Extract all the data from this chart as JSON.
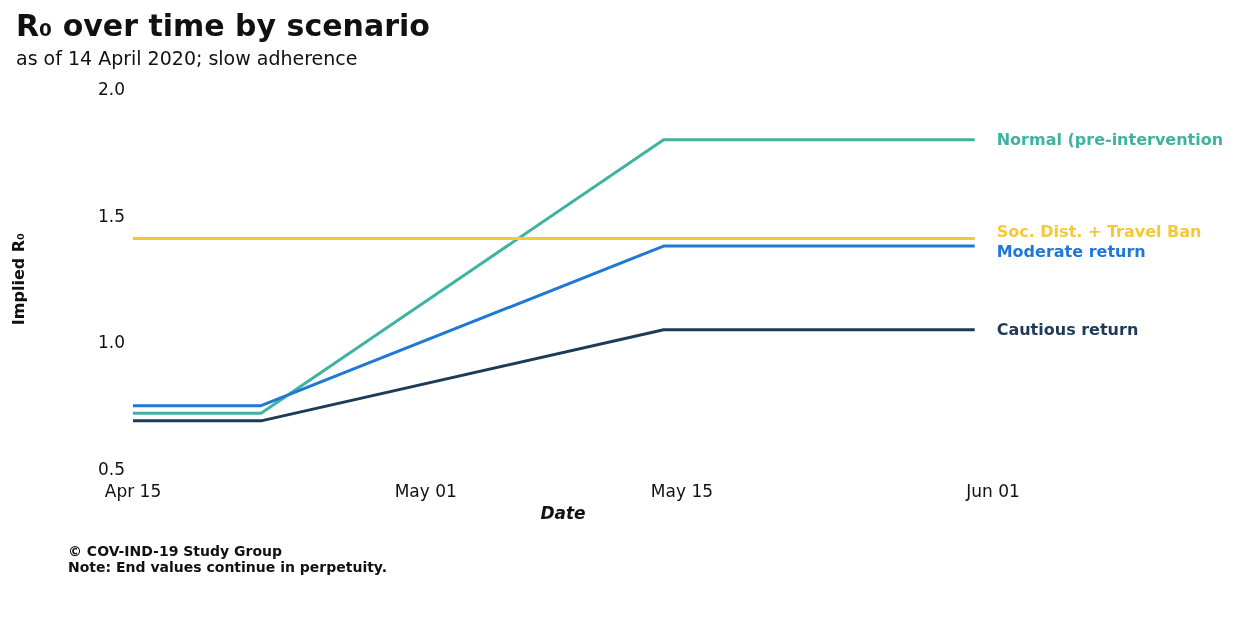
{
  "chart_data": {
    "type": "line",
    "title": "R₀ over time by scenario",
    "subtitle": "as of 14 April 2020; slow adherence",
    "xlabel": "Date",
    "ylabel": "Implied R₀",
    "series": [
      {
        "name": "Normal (pre-intervention",
        "color": "#3fb3a1",
        "x": [
          "2020-04-15",
          "2020-04-22",
          "2020-05-14",
          "2020-05-31"
        ],
        "values": [
          0.72,
          0.72,
          1.8,
          1.8
        ]
      },
      {
        "name": "Soc. Dist. + Travel Ban",
        "color": "#f6c838",
        "x": [
          "2020-04-15",
          "2020-05-31"
        ],
        "values": [
          1.41,
          1.41
        ]
      },
      {
        "name": "Moderate return",
        "color": "#1f78d8",
        "x": [
          "2020-04-15",
          "2020-04-22",
          "2020-05-14",
          "2020-05-31"
        ],
        "values": [
          0.75,
          0.75,
          1.38,
          1.38
        ]
      },
      {
        "name": "Cautious return",
        "color": "#1d3b57",
        "x": [
          "2020-04-15",
          "2020-04-22",
          "2020-05-14",
          "2020-05-31"
        ],
        "values": [
          0.69,
          0.69,
          1.05,
          1.05
        ]
      }
    ],
    "xlim": [
      "2020-04-15",
      "2020-06-01"
    ],
    "xticks": [
      {
        "value": "2020-04-15",
        "label": "Apr 15"
      },
      {
        "value": "2020-05-01",
        "label": "May 01"
      },
      {
        "value": "2020-05-15",
        "label": "May 15"
      },
      {
        "value": "2020-06-01",
        "label": "Jun 01"
      }
    ],
    "ylim": [
      0.5,
      2.0
    ],
    "yticks": [
      {
        "value": 0.5,
        "label": "0.5"
      },
      {
        "value": 1.0,
        "label": "1.0"
      },
      {
        "value": 1.5,
        "label": "1.5"
      },
      {
        "value": 2.0,
        "label": "2.0"
      }
    ],
    "grid": false,
    "legend": false,
    "marker": "none",
    "line_style": "solid",
    "annotations": [
      "© COV-IND-19 Study Group",
      "Note: End values continue in perpetuity."
    ]
  }
}
